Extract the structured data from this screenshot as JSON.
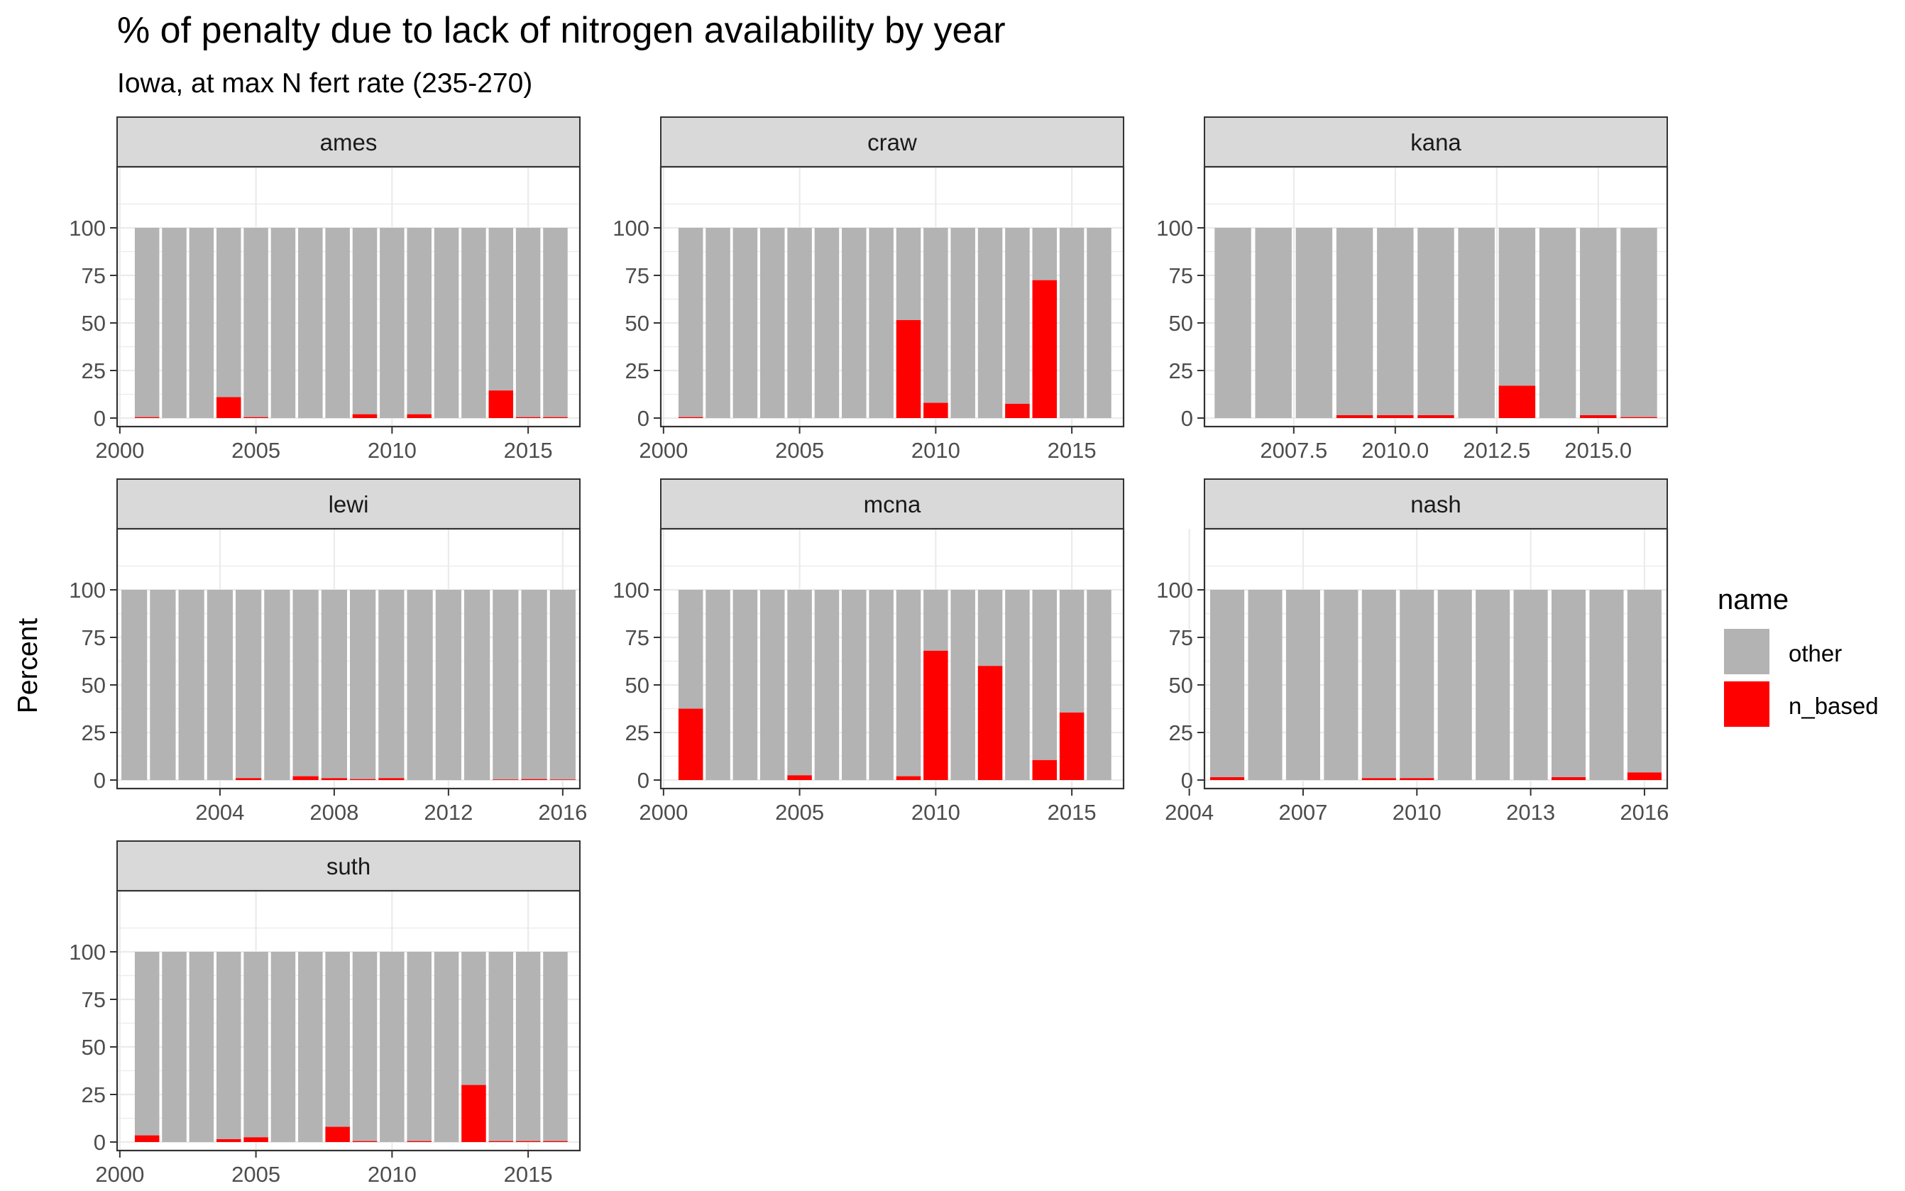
{
  "chart_data": {
    "type": "bar",
    "stacked": true,
    "title": "% of penalty due to lack of nitrogen availability by year",
    "subtitle": "Iowa, at max N fert rate (235-270)",
    "ylabel": "Percent",
    "xlabel": "",
    "ylim": [
      0,
      100
    ],
    "y_ticks": [
      "0",
      "25",
      "50",
      "75",
      "100"
    ],
    "grid": true,
    "legend": {
      "title": "name",
      "position": "right",
      "entries": [
        {
          "label": "other",
          "color": "#b3b3b3"
        },
        {
          "label": "n_based",
          "color": "#ff0000"
        }
      ]
    },
    "colors": {
      "other": "#b3b3b3",
      "n_based": "#ff0000",
      "strip_fill": "#d9d9d9",
      "panel_border": "#333333",
      "grid": "#ebebeb"
    },
    "panels": [
      {
        "name": "ames",
        "x_ticks": [
          "2000",
          "2005",
          "2010",
          "2015"
        ],
        "x_tick_values": [
          2000,
          2005,
          2010,
          2015
        ],
        "xlim": [
          1999.9,
          2016.9
        ],
        "years": [
          2001,
          2002,
          2003,
          2004,
          2005,
          2006,
          2007,
          2008,
          2009,
          2010,
          2011,
          2012,
          2013,
          2014,
          2015,
          2016
        ],
        "n_based": [
          0.5,
          0,
          0,
          11,
          0.5,
          0,
          0,
          0,
          2,
          0,
          2,
          0,
          0,
          14.5,
          0.5,
          0.5
        ]
      },
      {
        "name": "craw",
        "x_ticks": [
          "2000",
          "2005",
          "2010",
          "2015"
        ],
        "x_tick_values": [
          2000,
          2005,
          2010,
          2015
        ],
        "xlim": [
          1999.9,
          2016.9
        ],
        "years": [
          2001,
          2002,
          2003,
          2004,
          2005,
          2006,
          2007,
          2008,
          2009,
          2010,
          2011,
          2012,
          2013,
          2014,
          2015,
          2016
        ],
        "n_based": [
          0.5,
          0,
          0,
          0,
          0,
          0,
          0,
          0,
          51.5,
          8,
          0,
          0,
          7.5,
          72.5,
          0,
          0
        ]
      },
      {
        "name": "kana",
        "x_ticks": [
          "2007.5",
          "2010.0",
          "2012.5",
          "2015.0"
        ],
        "x_tick_values": [
          2007.5,
          2010.0,
          2012.5,
          2015.0
        ],
        "xlim": [
          2005.3,
          2016.7
        ],
        "years": [
          2006,
          2007,
          2008,
          2009,
          2010,
          2011,
          2012,
          2013,
          2014,
          2015,
          2016
        ],
        "n_based": [
          0,
          0,
          0,
          1.5,
          1.5,
          1.5,
          0,
          17,
          0,
          1.5,
          0.5
        ]
      },
      {
        "name": "lewi",
        "x_ticks": [
          "2004",
          "2008",
          "2012",
          "2016"
        ],
        "x_tick_values": [
          2004,
          2008,
          2012,
          2016
        ],
        "xlim": [
          2000.4,
          2016.6
        ],
        "years": [
          2001,
          2002,
          2003,
          2004,
          2005,
          2006,
          2007,
          2008,
          2009,
          2010,
          2011,
          2012,
          2013,
          2014,
          2015,
          2016
        ],
        "n_based": [
          0,
          0,
          0,
          0,
          1,
          0,
          2,
          1,
          0.5,
          1,
          0,
          0,
          0,
          0.3,
          0.5,
          0.3
        ]
      },
      {
        "name": "mcna",
        "x_ticks": [
          "2000",
          "2005",
          "2010",
          "2015"
        ],
        "x_tick_values": [
          2000,
          2005,
          2010,
          2015
        ],
        "xlim": [
          1999.9,
          2016.9
        ],
        "years": [
          2001,
          2002,
          2003,
          2004,
          2005,
          2006,
          2007,
          2008,
          2009,
          2010,
          2011,
          2012,
          2013,
          2014,
          2015,
          2016
        ],
        "n_based": [
          37.5,
          0,
          0,
          0,
          2.5,
          0,
          0,
          0,
          2,
          68,
          0,
          60,
          0,
          10.5,
          35.5,
          0
        ]
      },
      {
        "name": "nash",
        "x_ticks": [
          "2004",
          "2007",
          "2010",
          "2013",
          "2016"
        ],
        "x_tick_values": [
          2004,
          2007,
          2010,
          2013,
          2016
        ],
        "xlim": [
          2004.4,
          2016.6
        ],
        "years": [
          2005,
          2006,
          2007,
          2008,
          2009,
          2010,
          2011,
          2012,
          2013,
          2014,
          2015,
          2016
        ],
        "n_based": [
          1.5,
          0,
          0,
          0,
          1,
          1,
          0,
          0,
          0,
          1.5,
          0,
          4
        ]
      },
      {
        "name": "suth",
        "x_ticks": [
          "2000",
          "2005",
          "2010",
          "2015"
        ],
        "x_tick_values": [
          2000,
          2005,
          2010,
          2015
        ],
        "xlim": [
          1999.9,
          2016.9
        ],
        "years": [
          2001,
          2002,
          2003,
          2004,
          2005,
          2006,
          2007,
          2008,
          2009,
          2010,
          2011,
          2012,
          2013,
          2014,
          2015,
          2016
        ],
        "n_based": [
          3.5,
          0,
          0,
          1.5,
          2.5,
          0,
          0,
          8,
          0.5,
          0,
          0.5,
          0,
          30,
          0.5,
          0.5,
          0.5
        ]
      }
    ]
  }
}
